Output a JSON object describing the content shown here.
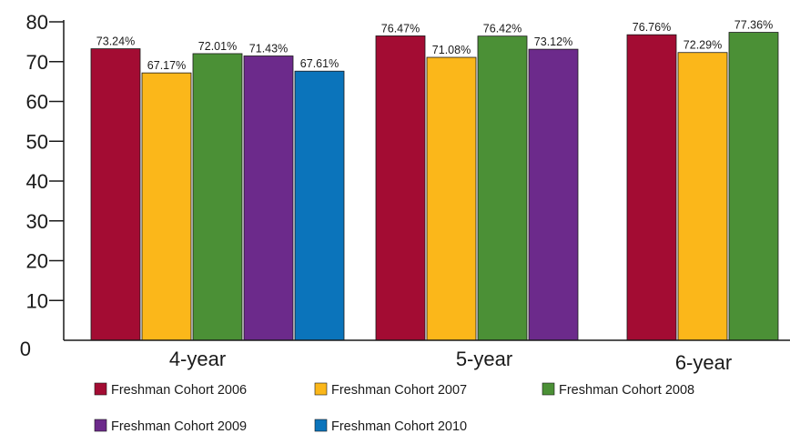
{
  "chart_data": {
    "type": "bar",
    "title": "",
    "xlabel": "",
    "ylabel": "",
    "ylim": [
      0,
      80
    ],
    "yticks": [
      "0",
      "10",
      "20",
      "30",
      "40",
      "50",
      "60",
      "70",
      "80"
    ],
    "grid": false,
    "legend_position": "bottom",
    "categories": [
      "4-year",
      "5-year",
      "6-year"
    ],
    "series": [
      {
        "name": "Freshman Cohort 2006",
        "color": "#a30c33",
        "values": [
          73.24,
          76.47,
          76.76
        ],
        "labels": [
          "73.24%",
          "76.47%",
          "76.76%"
        ]
      },
      {
        "name": "Freshman Cohort 2007",
        "color": "#fbb71a",
        "values": [
          67.17,
          71.08,
          72.29
        ],
        "labels": [
          "67.17%",
          "71.08%",
          "72.29%"
        ]
      },
      {
        "name": "Freshman Cohort 2008",
        "color": "#4b9036",
        "values": [
          72.01,
          76.42,
          77.36
        ],
        "labels": [
          "72.01%",
          "76.42%",
          "77.36%"
        ]
      },
      {
        "name": "Freshman Cohort 2009",
        "color": "#6c2a8b",
        "values": [
          71.43,
          73.12,
          null
        ],
        "labels": [
          "71.43%",
          "73.12%",
          null
        ]
      },
      {
        "name": "Freshman Cohort 2010",
        "color": "#0b74bb",
        "values": [
          67.61,
          null,
          null
        ],
        "labels": [
          "67.61%",
          null,
          null
        ]
      }
    ]
  }
}
